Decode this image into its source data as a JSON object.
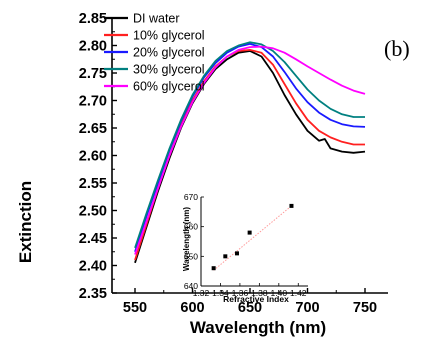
{
  "panel_label": "(b)",
  "chart_data": [
    {
      "type": "line",
      "xlabel": "Wavelength (nm)",
      "ylabel": "Extinction",
      "xlim": [
        530,
        770
      ],
      "ylim": [
        2.35,
        2.85
      ],
      "xticks": [
        550,
        600,
        650,
        700,
        750
      ],
      "yticks": [
        2.35,
        2.4,
        2.45,
        2.5,
        2.55,
        2.6,
        2.65,
        2.7,
        2.75,
        2.8,
        2.85
      ],
      "grid": false,
      "legend_position": "top-left",
      "series": [
        {
          "name": "DI water",
          "color": "#000000",
          "points": [
            [
              550,
              2.405
            ],
            [
              560,
              2.47
            ],
            [
              570,
              2.535
            ],
            [
              580,
              2.595
            ],
            [
              590,
              2.65
            ],
            [
              600,
              2.695
            ],
            [
              610,
              2.73
            ],
            [
              620,
              2.757
            ],
            [
              630,
              2.775
            ],
            [
              640,
              2.787
            ],
            [
              650,
              2.79
            ],
            [
              660,
              2.78
            ],
            [
              670,
              2.75
            ],
            [
              680,
              2.71
            ],
            [
              690,
              2.675
            ],
            [
              700,
              2.645
            ],
            [
              710,
              2.627
            ],
            [
              715,
              2.63
            ],
            [
              720,
              2.613
            ],
            [
              730,
              2.607
            ],
            [
              740,
              2.605
            ],
            [
              750,
              2.607
            ]
          ]
        },
        {
          "name": "10% glycerol",
          "color": "#ff2020",
          "points": [
            [
              550,
              2.41
            ],
            [
              560,
              2.475
            ],
            [
              570,
              2.54
            ],
            [
              580,
              2.6
            ],
            [
              590,
              2.655
            ],
            [
              600,
              2.7
            ],
            [
              610,
              2.735
            ],
            [
              620,
              2.762
            ],
            [
              630,
              2.78
            ],
            [
              640,
              2.79
            ],
            [
              650,
              2.792
            ],
            [
              660,
              2.787
            ],
            [
              670,
              2.765
            ],
            [
              680,
              2.73
            ],
            [
              690,
              2.695
            ],
            [
              700,
              2.665
            ],
            [
              710,
              2.645
            ],
            [
              720,
              2.633
            ],
            [
              730,
              2.625
            ],
            [
              740,
              2.62
            ],
            [
              750,
              2.62
            ]
          ]
        },
        {
          "name": "20% glycerol",
          "color": "#1a1aff",
          "points": [
            [
              550,
              2.425
            ],
            [
              560,
              2.49
            ],
            [
              570,
              2.55
            ],
            [
              580,
              2.61
            ],
            [
              590,
              2.662
            ],
            [
              600,
              2.707
            ],
            [
              610,
              2.742
            ],
            [
              620,
              2.768
            ],
            [
              630,
              2.787
            ],
            [
              640,
              2.798
            ],
            [
              650,
              2.803
            ],
            [
              660,
              2.797
            ],
            [
              670,
              2.78
            ],
            [
              680,
              2.752
            ],
            [
              690,
              2.722
            ],
            [
              700,
              2.697
            ],
            [
              710,
              2.678
            ],
            [
              720,
              2.665
            ],
            [
              730,
              2.657
            ],
            [
              740,
              2.653
            ],
            [
              750,
              2.652
            ]
          ]
        },
        {
          "name": "30% glycerol",
          "color": "#008080",
          "points": [
            [
              550,
              2.432
            ],
            [
              560,
              2.495
            ],
            [
              570,
              2.555
            ],
            [
              580,
              2.613
            ],
            [
              590,
              2.665
            ],
            [
              600,
              2.71
            ],
            [
              610,
              2.745
            ],
            [
              620,
              2.772
            ],
            [
              630,
              2.79
            ],
            [
              640,
              2.8
            ],
            [
              650,
              2.806
            ],
            [
              660,
              2.802
            ],
            [
              670,
              2.79
            ],
            [
              680,
              2.77
            ],
            [
              690,
              2.745
            ],
            [
              700,
              2.72
            ],
            [
              710,
              2.7
            ],
            [
              720,
              2.685
            ],
            [
              730,
              2.675
            ],
            [
              740,
              2.67
            ],
            [
              750,
              2.67
            ]
          ]
        },
        {
          "name": "60% glycerol",
          "color": "#ff00ff",
          "points": [
            [
              550,
              2.42
            ],
            [
              560,
              2.48
            ],
            [
              570,
              2.54
            ],
            [
              580,
              2.6
            ],
            [
              590,
              2.652
            ],
            [
              600,
              2.697
            ],
            [
              610,
              2.732
            ],
            [
              620,
              2.76
            ],
            [
              630,
              2.78
            ],
            [
              640,
              2.792
            ],
            [
              650,
              2.797
            ],
            [
              660,
              2.798
            ],
            [
              670,
              2.795
            ],
            [
              680,
              2.787
            ],
            [
              690,
              2.775
            ],
            [
              700,
              2.762
            ],
            [
              710,
              2.75
            ],
            [
              720,
              2.738
            ],
            [
              730,
              2.727
            ],
            [
              740,
              2.718
            ],
            [
              750,
              2.712
            ]
          ]
        }
      ]
    },
    {
      "type": "scatter",
      "inset": true,
      "xlabel": "Refractive Index",
      "ylabel": "Wavelength (nm)",
      "xlim": [
        1.32,
        1.43
      ],
      "ylim": [
        640,
        670
      ],
      "xticks": [
        "1.32",
        "1.34",
        "1.36",
        "1.38",
        "1.40",
        "1.42"
      ],
      "yticks": [
        "640",
        "650",
        "660",
        "670"
      ],
      "marker_color": "#000000",
      "fit_line_color": "#ff9999",
      "points": [
        [
          1.333,
          646
        ],
        [
          1.345,
          650
        ],
        [
          1.357,
          651
        ],
        [
          1.37,
          658
        ],
        [
          1.413,
          667
        ]
      ],
      "fit_line": [
        [
          1.333,
          645.3
        ],
        [
          1.413,
          667
        ]
      ]
    }
  ]
}
